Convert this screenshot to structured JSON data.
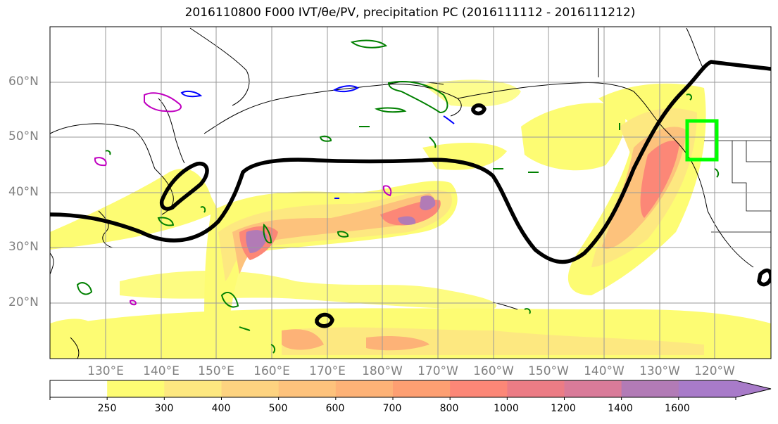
{
  "title": "2016110800 F000 IVT/θe/PV, precipitation PC (2016111112 - 2016111212)",
  "map": {
    "lat_labels": [
      "60°N",
      "50°N",
      "40°N",
      "30°N",
      "20°N"
    ],
    "lon_labels": [
      "130°E",
      "140°E",
      "150°E",
      "160°E",
      "170°E",
      "180°W",
      "170°W",
      "160°W",
      "150°W",
      "140°W",
      "130°W",
      "120°W"
    ],
    "contour_colors": {
      "theta_e": "#000000",
      "pv_positive": "#008000",
      "pv_negative": "#0000ff",
      "pv_other": "#c000c0",
      "precip_box": "#00ff00"
    }
  },
  "colorbar": {
    "levels": [
      "250",
      "300",
      "400",
      "500",
      "600",
      "700",
      "800",
      "1000",
      "1200",
      "1400",
      "1600"
    ],
    "colors": [
      "#ffffff",
      "#fdfc73",
      "#fde880",
      "#fdd380",
      "#fdc27c",
      "#fdb277",
      "#fd9f72",
      "#fc8777",
      "#ec7c85",
      "#d97b99",
      "#b27bb6",
      "#a87bc9"
    ]
  }
}
